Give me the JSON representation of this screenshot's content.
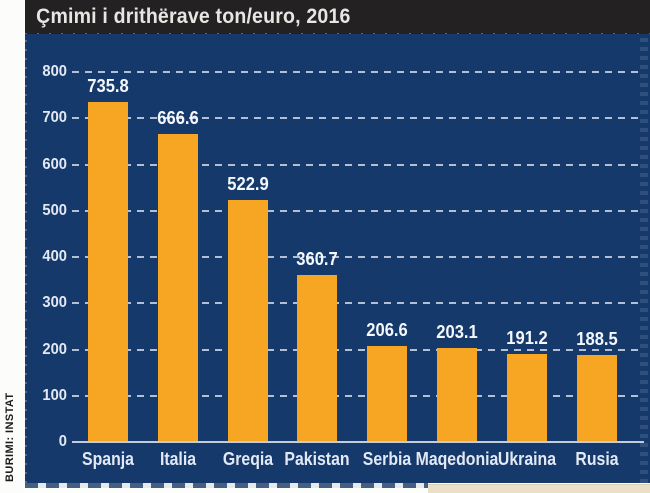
{
  "source_label": "BURIMI: INSTAT",
  "chart_data": {
    "type": "bar",
    "title": "Çmimi i drithërave ton/euro, 2016",
    "categories": [
      "Spanja",
      "Italia",
      "Greqia",
      "Pakistan",
      "Serbia",
      "Maqedonia",
      "Ukraina",
      "Rusia"
    ],
    "values": [
      735.8,
      666.6,
      522.9,
      360.7,
      206.6,
      203.1,
      191.2,
      188.5
    ],
    "value_labels": [
      "735.8",
      "666.6",
      "522.9",
      "360.7",
      "206.6",
      "203.1",
      "191.2",
      "188.5"
    ],
    "y_ticks": [
      0,
      100,
      200,
      300,
      400,
      500,
      600,
      700,
      800
    ],
    "ylim": [
      0,
      800
    ],
    "xlabel": "",
    "ylabel": "",
    "grid": "horizontal-dashed",
    "legend": "none",
    "colors": {
      "panel_background": "#16396B",
      "bar": "#F7A623",
      "title_bar_background": "#242122",
      "title_text": "#E7E6E3",
      "axis_text": "#E2E9F4",
      "gridline": "#C9D3E2",
      "baseline": "#C3CCDA",
      "source_text": "#1C1C1C",
      "adjacent_strip": "#EADFC7"
    }
  }
}
